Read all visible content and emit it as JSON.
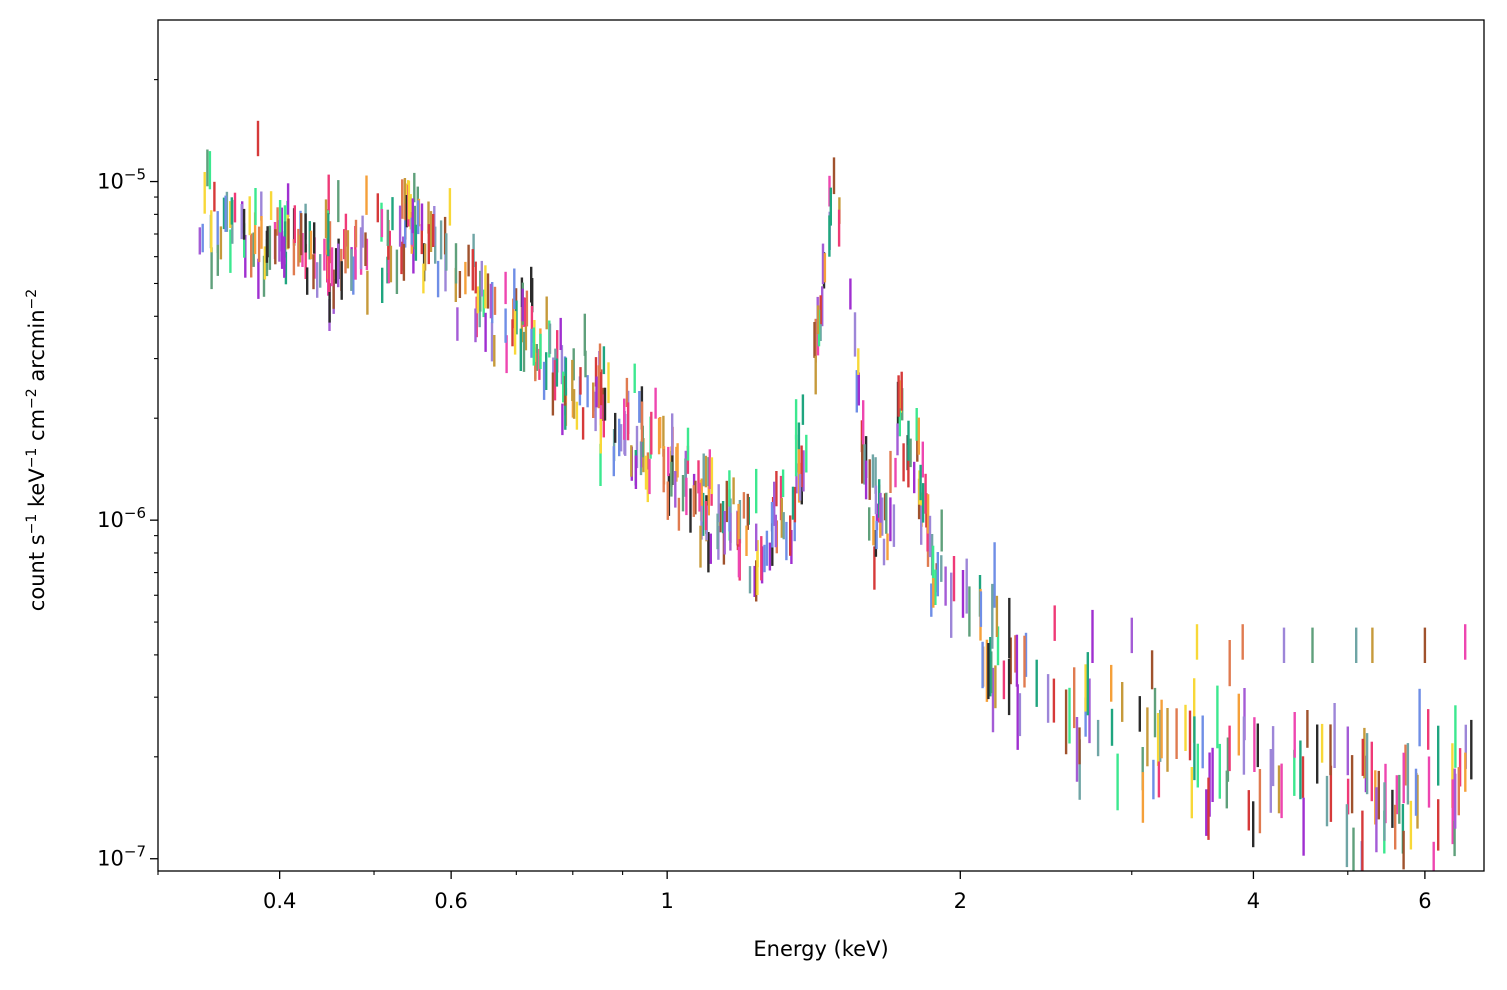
{
  "chart_data": {
    "type": "scatter",
    "title": "",
    "xlabel": "Energy (keV)",
    "ylabel_parts": {
      "main": "count s",
      "s_exp": "−1",
      "kev": " keV",
      "kev_exp": "−1",
      "cm": " cm",
      "cm_exp": "−2",
      "arc": " arcmin",
      "arc_exp": "−2"
    },
    "x_scale": "log",
    "y_scale": "log",
    "xlim": [
      0.3,
      6.9
    ],
    "ylim": [
      9.2e-08,
      3e-05
    ],
    "x_ticks": [
      {
        "value": 0.4,
        "label": "0.4"
      },
      {
        "value": 0.6,
        "label": "0.6"
      },
      {
        "value": 1,
        "label": "1"
      },
      {
        "value": 2,
        "label": "2"
      },
      {
        "value": 4,
        "label": "4"
      },
      {
        "value": 6,
        "label": "6"
      }
    ],
    "y_ticks": [
      {
        "value": 1e-05,
        "base": "10",
        "exp": "−5"
      },
      {
        "value": 1e-06,
        "base": "10",
        "exp": "−6"
      },
      {
        "value": 1e-07,
        "base": "10",
        "exp": "−7"
      }
    ],
    "grid": false,
    "legend": "none",
    "marker": "vertical error bars (one per energy bin), multiple overlapping colored series",
    "colors": [
      "#2b2b2b",
      "#f5a03a",
      "#3ce88f",
      "#6f8ee6",
      "#ef3a77",
      "#a45cd6",
      "#f8d838",
      "#e07b50",
      "#9d86d8",
      "#5fa07b",
      "#c69a3b",
      "#ee46b0",
      "#6fa5a5",
      "#a0522d",
      "#d63a3a",
      "#1fa57f",
      "#a02fd0"
    ],
    "series_profile": [
      {
        "x": 0.33,
        "y": 8.2e-06
      },
      {
        "x": 0.36,
        "y": 7.4e-06
      },
      {
        "x": 0.4,
        "y": 6.6e-06
      },
      {
        "x": 0.45,
        "y": 6e-06
      },
      {
        "x": 0.5,
        "y": 6e-06
      },
      {
        "x": 0.55,
        "y": 7.5e-06
      },
      {
        "x": 0.58,
        "y": 7e-06
      },
      {
        "x": 0.62,
        "y": 5.2e-06
      },
      {
        "x": 0.68,
        "y": 4e-06
      },
      {
        "x": 0.75,
        "y": 3e-06
      },
      {
        "x": 0.85,
        "y": 2.2e-06
      },
      {
        "x": 0.95,
        "y": 1.7e-06
      },
      {
        "x": 1.05,
        "y": 1.3e-06
      },
      {
        "x": 1.15,
        "y": 1e-06
      },
      {
        "x": 1.25,
        "y": 8.5e-07
      },
      {
        "x": 1.33,
        "y": 1e-06
      },
      {
        "x": 1.4,
        "y": 2e-06
      },
      {
        "x": 1.45,
        "y": 5e-06
      },
      {
        "x": 1.49,
        "y": 1.05e-05
      },
      {
        "x": 1.53,
        "y": 6.5e-06
      },
      {
        "x": 1.57,
        "y": 2.5e-06
      },
      {
        "x": 1.62,
        "y": 1.1e-06
      },
      {
        "x": 1.68,
        "y": 8.5e-07
      },
      {
        "x": 1.74,
        "y": 2.2e-06
      },
      {
        "x": 1.8,
        "y": 1.6e-06
      },
      {
        "x": 1.88,
        "y": 7.5e-07
      },
      {
        "x": 2.1,
        "y": 4.6e-07
      },
      {
        "x": 2.5,
        "y": 3.2e-07
      },
      {
        "x": 3.0,
        "y": 2.3e-07
      },
      {
        "x": 4.0,
        "y": 1.8e-07
      },
      {
        "x": 5.0,
        "y": 1.7e-07
      },
      {
        "x": 6.8,
        "y": 1.6e-07
      }
    ],
    "bins_dense_range": [
      0.33,
      1.95
    ],
    "bins_sparse_range": [
      1.95,
      6.8
    ],
    "dense_bin_count": 520,
    "sparse_bin_count": 150,
    "outliers": [
      {
        "x": 2.1,
        "y": 5.5e-07
      },
      {
        "x": 2.5,
        "y": 5e-07
      },
      {
        "x": 3.0,
        "y": 4.6e-07
      },
      {
        "x": 3.5,
        "y": 4.4e-07
      },
      {
        "x": 3.9,
        "y": 4.4e-07
      },
      {
        "x": 4.3,
        "y": 4.3e-07
      },
      {
        "x": 4.6,
        "y": 4.3e-07
      },
      {
        "x": 5.3,
        "y": 4.3e-07
      },
      {
        "x": 6.6,
        "y": 4.4e-07
      },
      {
        "x": 5.1,
        "y": 4.3e-07
      },
      {
        "x": 6.0,
        "y": 4.3e-07
      },
      {
        "x": 0.38,
        "y": 1.35e-05
      }
    ]
  }
}
